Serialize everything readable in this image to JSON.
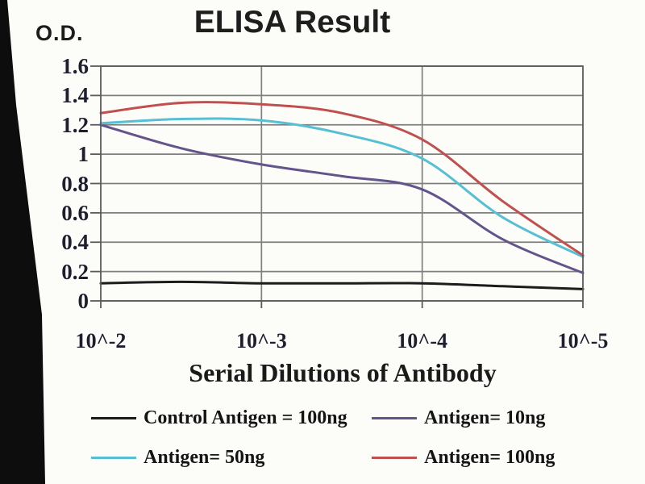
{
  "chart_data": {
    "type": "line",
    "title": "ELISA Result",
    "ylabel": "O.D.",
    "xlabel": "Serial Dilutions of Antibody",
    "x_tick_labels": [
      "10^-2",
      "10^-3",
      "10^-4",
      "10^-5"
    ],
    "x_tick_exponents": [
      -2,
      -3,
      -4,
      -5
    ],
    "x_exponents": [
      -2,
      -2.5,
      -3,
      -3.5,
      -4,
      -4.5,
      -5
    ],
    "y_tick_labels": [
      "0",
      "0.2",
      "0.4",
      "0.6",
      "0.8",
      "1",
      "1.2",
      "1.4",
      "1.6"
    ],
    "y_tick_values": [
      0,
      0.2,
      0.4,
      0.6,
      0.8,
      1.0,
      1.2,
      1.4,
      1.6
    ],
    "ylim": [
      0,
      1.6
    ],
    "grid": true,
    "legend_position": "bottom",
    "axis_color": "#5a5a5a",
    "grid_color": "#7f7f7f",
    "series": [
      {
        "name": "Control Antigen = 100ng",
        "color": "#1c1c1c",
        "values": [
          0.12,
          0.13,
          0.12,
          0.12,
          0.12,
          0.1,
          0.08
        ]
      },
      {
        "name": "Antigen= 10ng",
        "color": "#63558c",
        "values": [
          1.2,
          1.04,
          0.93,
          0.85,
          0.76,
          0.42,
          0.19
        ]
      },
      {
        "name": "Antigen= 50ng",
        "color": "#55bfd4",
        "values": [
          1.21,
          1.24,
          1.23,
          1.14,
          0.97,
          0.57,
          0.3
        ]
      },
      {
        "name": "Antigen= 100ng",
        "color": "#c0504d",
        "values": [
          1.28,
          1.35,
          1.34,
          1.28,
          1.1,
          0.68,
          0.31
        ]
      }
    ]
  }
}
